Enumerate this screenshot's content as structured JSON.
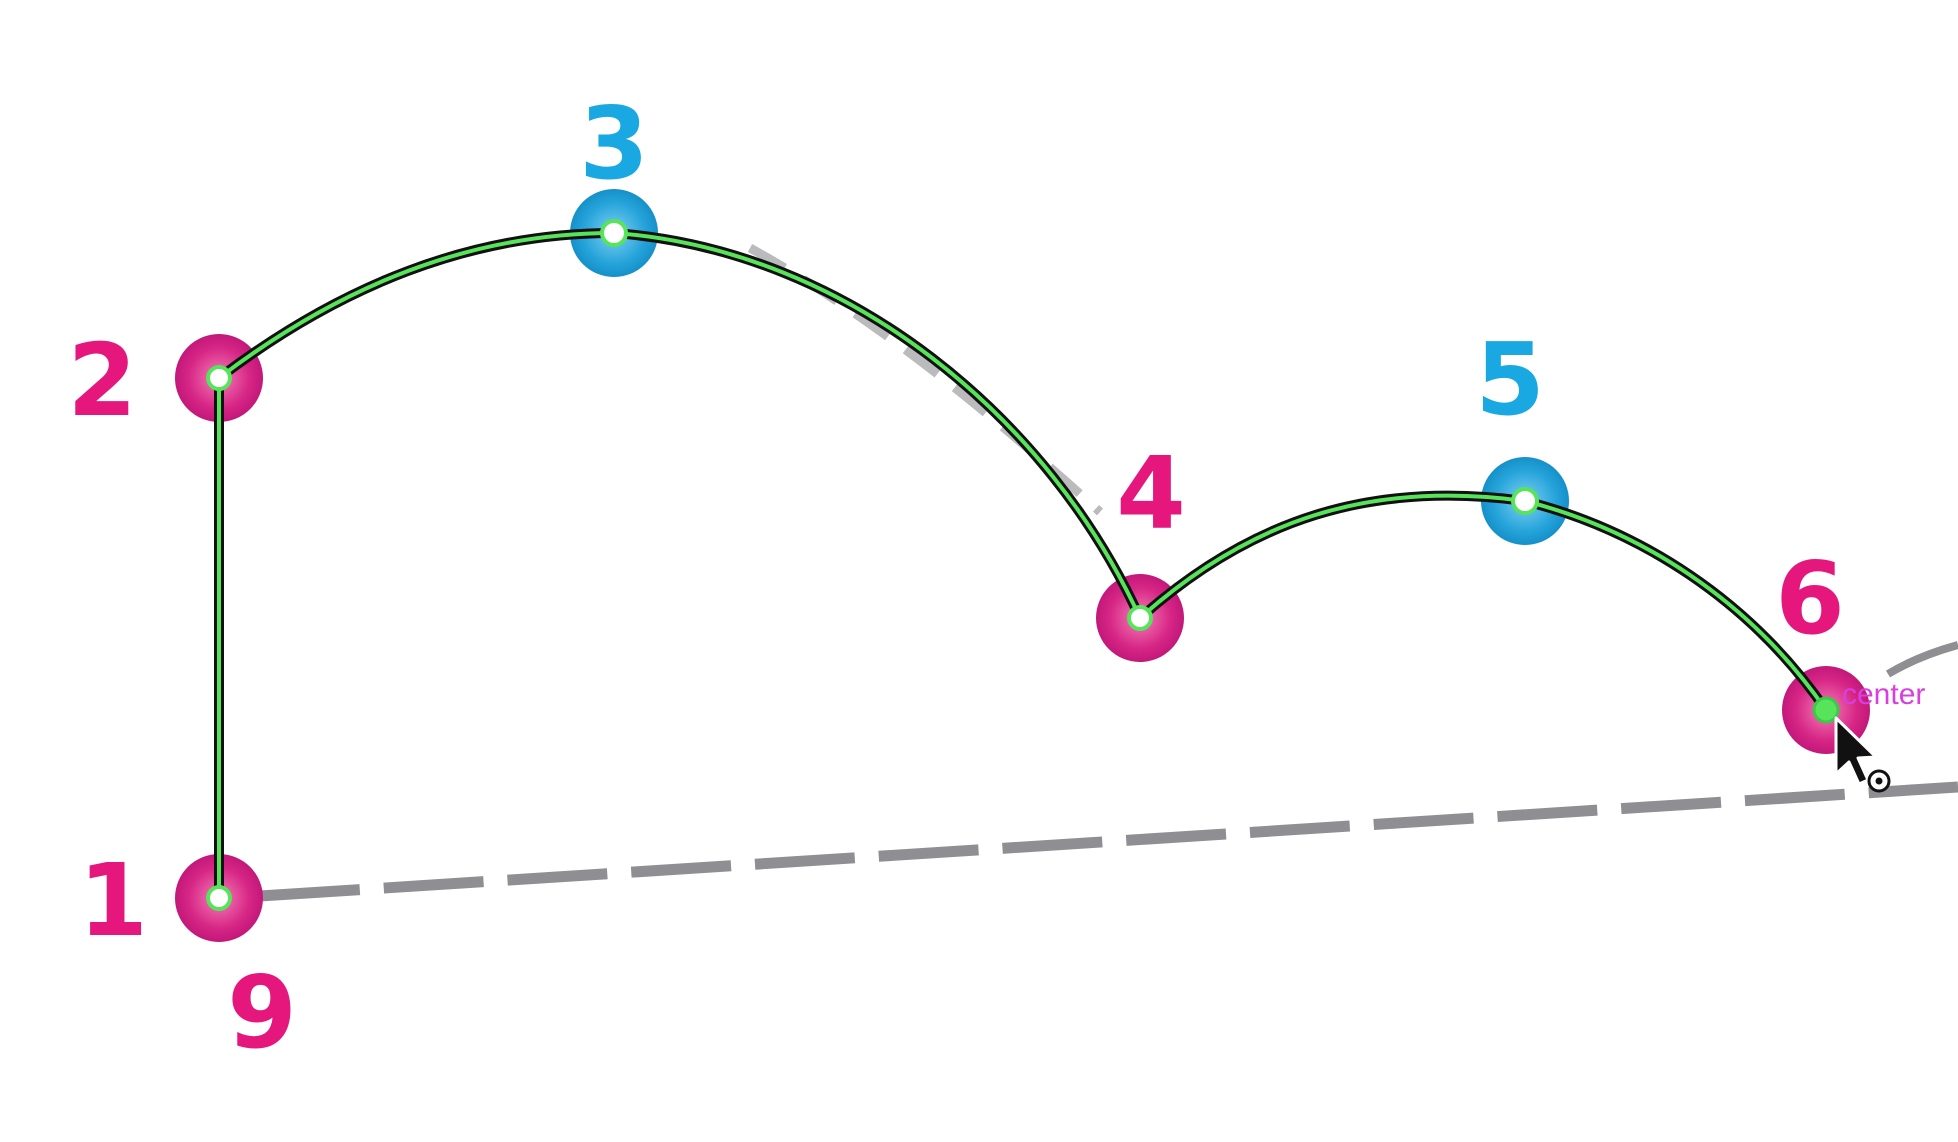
{
  "colors": {
    "corner": "#e5177d",
    "smooth": "#1aa8e2",
    "path_outline": "#111111",
    "path_fill": "#57e35a",
    "guide": "#8e8e93",
    "snap_label": "#d73fe0",
    "background": "#ffffff"
  },
  "points": [
    {
      "label": "1",
      "type": "corner"
    },
    {
      "label": "2",
      "type": "corner"
    },
    {
      "label": "3",
      "type": "smooth"
    },
    {
      "label": "4",
      "type": "corner"
    },
    {
      "label": "5",
      "type": "smooth"
    },
    {
      "label": "6",
      "type": "corner"
    }
  ],
  "closing_label": "9",
  "snap_hint": "center",
  "icons": {
    "cursor": "arrow-cursor-icon",
    "snap": "snap-target-icon"
  }
}
